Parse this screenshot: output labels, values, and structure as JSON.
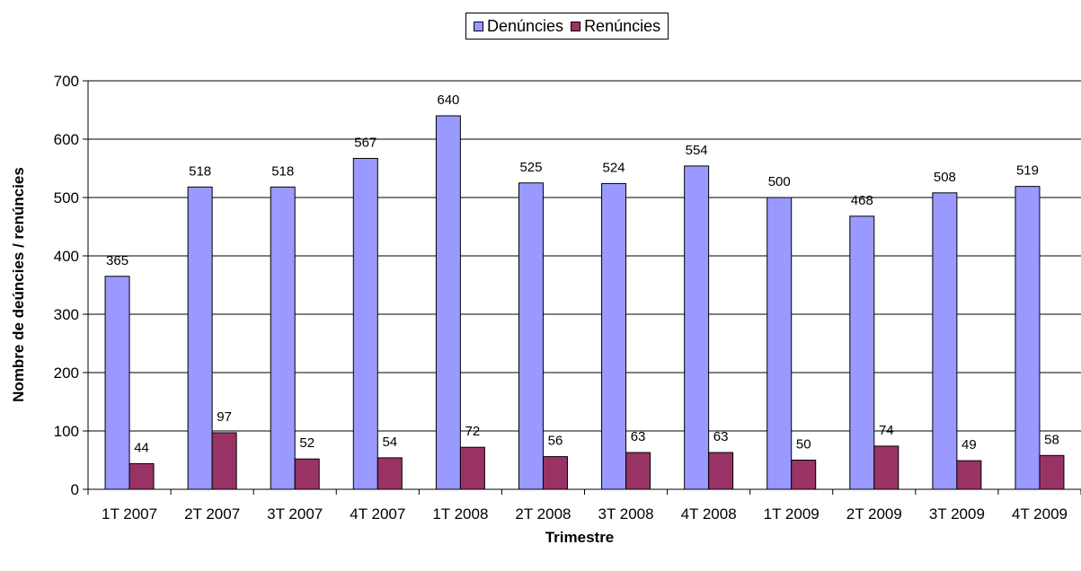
{
  "chart_data": {
    "type": "bar",
    "title": "",
    "xlabel": "Trimestre",
    "ylabel": "Nombre de deúncies / renúncies",
    "ylim": [
      0,
      700
    ],
    "yticks": [
      0,
      100,
      200,
      300,
      400,
      500,
      600,
      700
    ],
    "grid": true,
    "legend_position": "top-center",
    "categories": [
      "1T 2007",
      "2T 2007",
      "3T 2007",
      "4T 2007",
      "1T 2008",
      "2T 2008",
      "3T 2008",
      "4T 2008",
      "1T 2009",
      "2T 2009",
      "3T 2009",
      "4T 2009"
    ],
    "series": [
      {
        "name": "Denúncies",
        "color": "#9999FF",
        "values": [
          365,
          518,
          518,
          567,
          640,
          525,
          524,
          554,
          500,
          468,
          508,
          519
        ]
      },
      {
        "name": "Renúncies",
        "color": "#993366",
        "values": [
          44,
          97,
          52,
          54,
          72,
          56,
          63,
          63,
          50,
          74,
          49,
          58
        ]
      }
    ]
  }
}
